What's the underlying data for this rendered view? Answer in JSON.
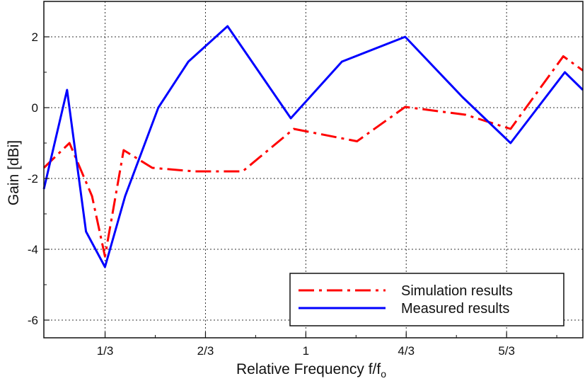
{
  "chart_data": {
    "type": "line",
    "title": "",
    "xlabel": "Relative Frequency f/f",
    "xlabel_subscript": "o",
    "ylabel": "Gain [dBi]",
    "xlim": [
      0.13,
      1.92
    ],
    "ylim": [
      -6.5,
      3.0
    ],
    "x_ticks": [
      {
        "value": 0.3333,
        "label": "1/3"
      },
      {
        "value": 0.6667,
        "label": "2/3"
      },
      {
        "value": 1.0,
        "label": "1"
      },
      {
        "value": 1.3333,
        "label": "4/3"
      },
      {
        "value": 1.6667,
        "label": "5/3"
      }
    ],
    "x_minor_ticks": [
      0.5,
      0.8333,
      1.1667,
      1.5,
      1.8333
    ],
    "y_ticks": [
      {
        "value": 2,
        "label": "2"
      },
      {
        "value": 0,
        "label": "0"
      },
      {
        "value": -2,
        "label": "-2"
      },
      {
        "value": -4,
        "label": "-4"
      },
      {
        "value": -6,
        "label": "-6"
      }
    ],
    "y_minor_ticks": [
      1,
      -1,
      -3,
      -5
    ],
    "grid": true,
    "legend_position": "bottom-right",
    "series": [
      {
        "name": "Simulation results",
        "color": "#ff0000",
        "style": "dash-dot",
        "x": [
          0.13,
          0.215,
          0.29,
          0.333,
          0.395,
          0.49,
          0.63,
          0.79,
          0.96,
          1.17,
          1.33,
          1.53,
          1.68,
          1.855,
          1.92
        ],
        "y": [
          -1.7,
          -1.0,
          -2.5,
          -4.2,
          -1.2,
          -1.7,
          -1.8,
          -1.8,
          -0.6,
          -0.95,
          0.02,
          -0.2,
          -0.6,
          1.45,
          1.05
        ]
      },
      {
        "name": "Measured results",
        "color": "#0000ff",
        "style": "solid",
        "x": [
          0.13,
          0.207,
          0.27,
          0.333,
          0.4,
          0.51,
          0.61,
          0.74,
          0.95,
          1.12,
          1.33,
          1.52,
          1.68,
          1.86,
          1.92
        ],
        "y": [
          -2.3,
          0.5,
          -3.5,
          -4.5,
          -2.5,
          0.0,
          1.3,
          2.3,
          -0.3,
          1.3,
          2.0,
          0.3,
          -1.0,
          1.0,
          0.5
        ]
      }
    ]
  }
}
